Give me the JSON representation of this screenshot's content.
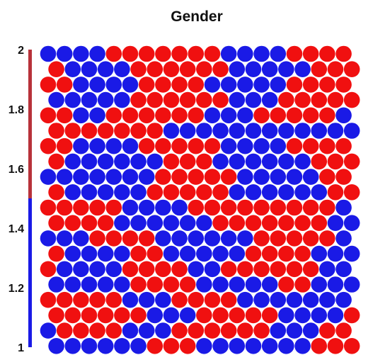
{
  "chart_data": {
    "type": "heatmap",
    "title": "Gender",
    "xlabel": "",
    "ylabel": "",
    "colorbar": {
      "range": [
        1,
        2
      ],
      "ticks": [
        "2",
        "1.8",
        "1.6",
        "1.4",
        "1.2",
        "1"
      ],
      "tick_values": [
        2,
        1.8,
        1.6,
        1.4,
        1.2,
        1
      ],
      "low_color": "#1a1ae6",
      "high_color": "#b8323a",
      "split_value": 1.5
    },
    "grid": {
      "rows": 20,
      "cols": 20,
      "cell_shape": "hexagon"
    },
    "palette": {
      "1": "#1a1ae6",
      "2": "#f01010"
    },
    "values": [
      [
        1,
        1,
        1,
        1,
        2,
        2,
        2,
        2,
        2,
        2,
        2,
        1,
        1,
        1,
        1,
        2,
        2,
        2,
        2,
        2
      ],
      [
        2,
        1,
        1,
        1,
        1,
        2,
        2,
        2,
        2,
        2,
        2,
        1,
        1,
        1,
        1,
        1,
        2,
        2,
        2,
        2
      ],
      [
        2,
        2,
        1,
        1,
        1,
        1,
        2,
        2,
        2,
        2,
        1,
        1,
        1,
        1,
        1,
        2,
        2,
        2,
        2,
        2
      ],
      [
        1,
        1,
        1,
        1,
        1,
        2,
        2,
        2,
        2,
        2,
        2,
        1,
        1,
        1,
        2,
        2,
        2,
        2,
        2,
        2
      ],
      [
        2,
        2,
        1,
        1,
        2,
        2,
        2,
        2,
        2,
        2,
        1,
        1,
        1,
        2,
        2,
        2,
        2,
        2,
        1,
        2
      ],
      [
        2,
        2,
        2,
        2,
        2,
        2,
        2,
        1,
        1,
        1,
        1,
        1,
        1,
        1,
        1,
        1,
        1,
        1,
        1,
        1
      ],
      [
        2,
        2,
        1,
        1,
        1,
        1,
        2,
        2,
        2,
        2,
        2,
        1,
        1,
        1,
        1,
        2,
        2,
        2,
        2,
        2
      ],
      [
        2,
        1,
        1,
        1,
        1,
        1,
        1,
        2,
        2,
        2,
        1,
        1,
        1,
        1,
        1,
        1,
        2,
        2,
        2,
        2
      ],
      [
        1,
        1,
        1,
        1,
        1,
        1,
        1,
        2,
        2,
        2,
        2,
        2,
        1,
        1,
        1,
        1,
        1,
        2,
        2,
        2
      ],
      [
        2,
        1,
        1,
        1,
        1,
        1,
        2,
        2,
        2,
        2,
        2,
        1,
        1,
        1,
        1,
        1,
        1,
        2,
        2,
        2
      ],
      [
        2,
        2,
        2,
        2,
        2,
        1,
        1,
        1,
        1,
        2,
        2,
        2,
        2,
        2,
        2,
        2,
        2,
        2,
        1,
        1
      ],
      [
        2,
        2,
        2,
        2,
        1,
        1,
        1,
        1,
        1,
        1,
        2,
        2,
        2,
        2,
        2,
        2,
        2,
        1,
        1,
        1
      ],
      [
        1,
        1,
        1,
        2,
        2,
        2,
        2,
        1,
        1,
        1,
        1,
        1,
        1,
        2,
        2,
        2,
        2,
        2,
        1,
        1
      ],
      [
        2,
        1,
        1,
        1,
        1,
        2,
        2,
        1,
        1,
        1,
        1,
        1,
        2,
        2,
        2,
        2,
        1,
        1,
        1,
        1
      ],
      [
        2,
        1,
        1,
        1,
        1,
        2,
        2,
        2,
        2,
        1,
        1,
        2,
        2,
        2,
        2,
        2,
        2,
        1,
        1,
        1
      ],
      [
        1,
        1,
        1,
        1,
        1,
        2,
        2,
        2,
        2,
        1,
        1,
        1,
        1,
        1,
        2,
        2,
        1,
        1,
        1,
        2
      ],
      [
        2,
        2,
        2,
        2,
        2,
        1,
        1,
        1,
        2,
        2,
        2,
        2,
        1,
        1,
        1,
        1,
        1,
        1,
        1,
        2
      ],
      [
        2,
        2,
        2,
        2,
        2,
        2,
        1,
        1,
        1,
        2,
        2,
        2,
        2,
        2,
        1,
        1,
        1,
        1,
        2,
        2
      ],
      [
        1,
        2,
        2,
        2,
        2,
        1,
        1,
        1,
        2,
        2,
        2,
        2,
        2,
        2,
        1,
        1,
        1,
        2,
        2,
        2
      ],
      [
        1,
        1,
        1,
        1,
        1,
        1,
        2,
        2,
        2,
        1,
        1,
        1,
        1,
        1,
        1,
        1,
        2,
        2,
        2,
        2
      ]
    ]
  }
}
